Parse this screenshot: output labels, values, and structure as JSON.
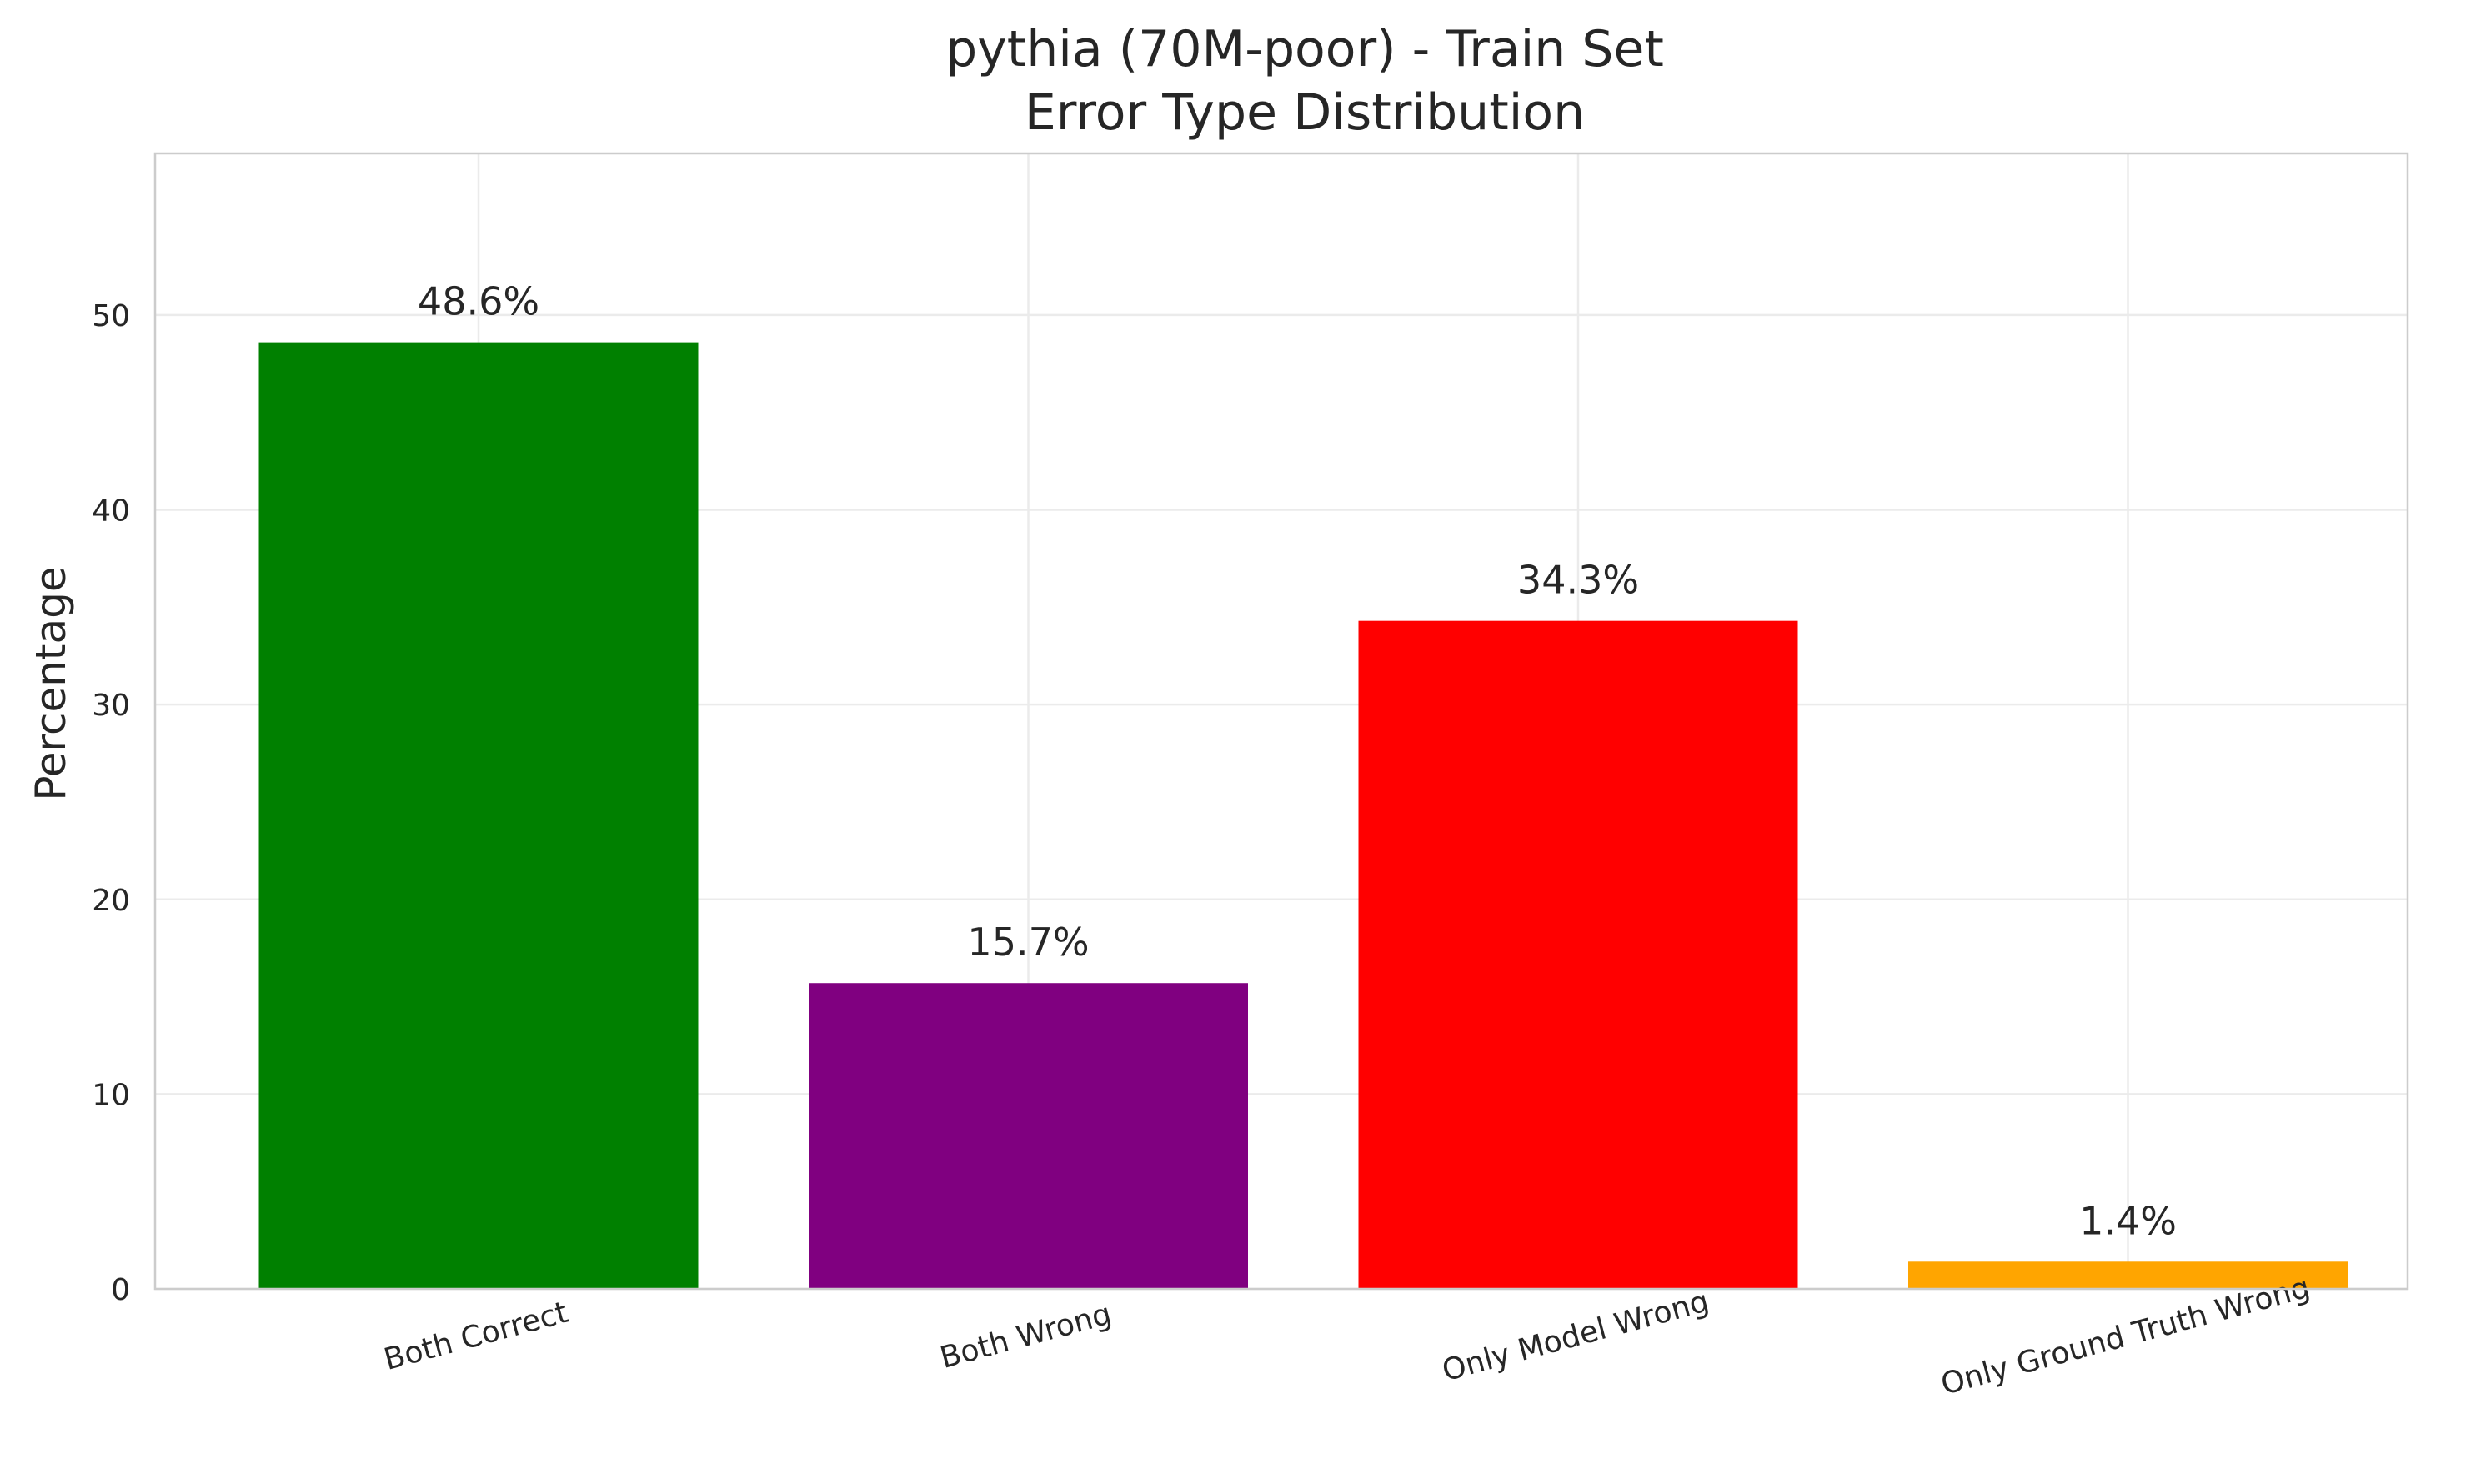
{
  "chart_data": {
    "type": "bar",
    "title": "pythia (70M-poor) - Train Set",
    "subtitle": "Error Type Distribution",
    "xlabel": "",
    "ylabel": "Percentage",
    "categories": [
      "Both Correct",
      "Both Wrong",
      "Only Model Wrong",
      "Only Ground Truth Wrong"
    ],
    "values": [
      48.6,
      15.7,
      34.3,
      1.4
    ],
    "value_labels": [
      "48.6%",
      "15.7%",
      "34.3%",
      "1.4%"
    ],
    "colors": [
      "#008000",
      "#800080",
      "#ff0000",
      "#ffa500"
    ],
    "ylim": [
      0,
      58.3
    ],
    "yticks": [
      0,
      10,
      20,
      30,
      40,
      50
    ],
    "ytick_labels": [
      "0",
      "10",
      "20",
      "30",
      "40",
      "50"
    ],
    "grid": true
  }
}
